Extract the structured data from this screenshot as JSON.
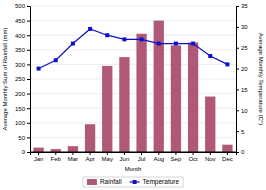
{
  "chart_data": {
    "type": "bar",
    "categories": [
      "Jan",
      "Feb",
      "Mar",
      "Apr",
      "May",
      "Jun",
      "Jul",
      "Aug",
      "Sep",
      "Oct",
      "Nov",
      "Dec"
    ],
    "xlabel": "Month",
    "ylabel": "Average Monthly Sum of Rainfall (mm)",
    "y2label": "Average Monthly Temperature (C°)",
    "series": [
      {
        "name": "Rainfall",
        "type": "bar",
        "color": "#b05878",
        "values": [
          15,
          10,
          20,
          95,
          295,
          325,
          405,
          450,
          365,
          375,
          190,
          25
        ]
      },
      {
        "name": "Temperature",
        "type": "line",
        "axis": "y2",
        "color": "#1010cc",
        "marker": "square",
        "line_style": "solid",
        "values": [
          20,
          22,
          26,
          29.5,
          28,
          27,
          27,
          26,
          26,
          26,
          23,
          21
        ]
      }
    ],
    "ylim": [
      0,
      500
    ],
    "yticks": [
      0,
      50,
      100,
      150,
      200,
      250,
      300,
      350,
      400,
      450,
      500
    ],
    "y2lim": [
      0,
      35
    ],
    "y2ticks": [
      0,
      5,
      10,
      15,
      20,
      25,
      30,
      35
    ],
    "grid": true,
    "legend": "bottom"
  }
}
